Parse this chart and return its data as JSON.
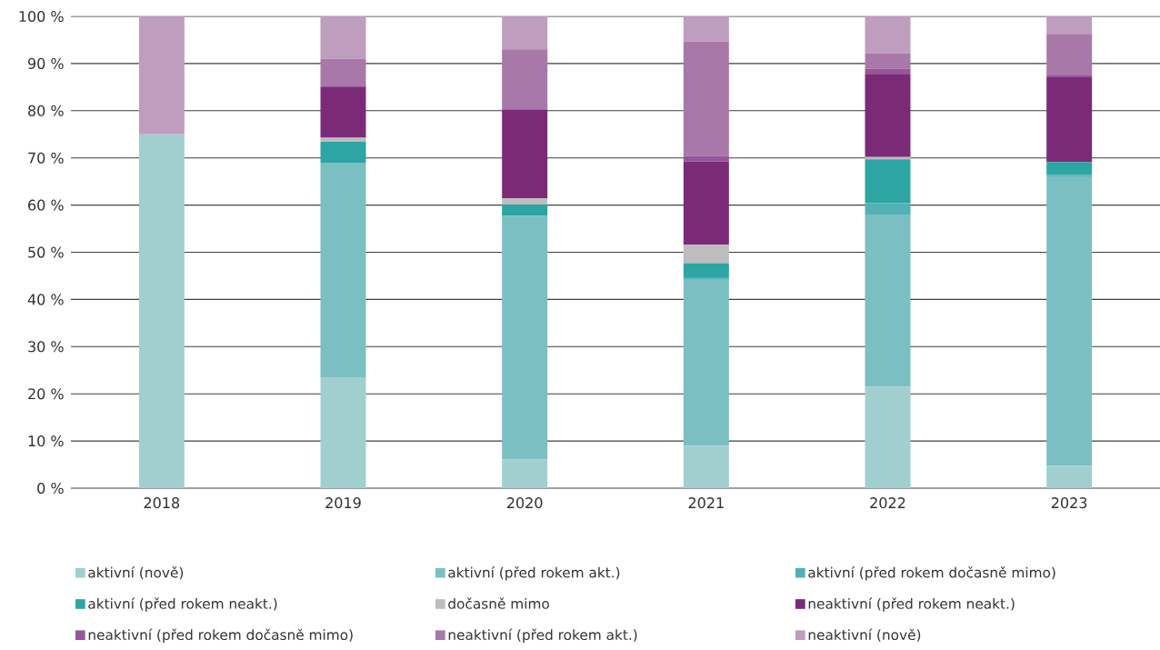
{
  "chart_data": {
    "type": "bar",
    "stacked": true,
    "grid": "y",
    "legend": "bottom",
    "categories": [
      "2018",
      "2019",
      "2020",
      "2021",
      "2022",
      "2023"
    ],
    "ylim": [
      0,
      100
    ],
    "yticks": [
      {
        "value": 0,
        "label": "0 %"
      },
      {
        "value": 10,
        "label": "10 %"
      },
      {
        "value": 20,
        "label": "20 %"
      },
      {
        "value": 30,
        "label": "30 %"
      },
      {
        "value": 40,
        "label": "40 %"
      },
      {
        "value": 50,
        "label": "50 %"
      },
      {
        "value": 60,
        "label": "60 %"
      },
      {
        "value": 70,
        "label": "70 %"
      },
      {
        "value": 80,
        "label": "80 %"
      },
      {
        "value": 90,
        "label": "90 %"
      },
      {
        "value": 100,
        "label": "100 %"
      }
    ],
    "series": [
      {
        "name": "aktivní (nově)",
        "color": "#a1cfd0",
        "values": [
          75,
          23.5,
          6.1,
          9.0,
          21.5,
          4.7
        ]
      },
      {
        "name": "aktivní (před rokem akt.)",
        "color": "#7bbfc3",
        "values": [
          0,
          45.5,
          51.6,
          35.3,
          36.5,
          61.4
        ]
      },
      {
        "name": "aktivní (před rokem dočasně mimo)",
        "color": "#52b1b3",
        "values": [
          0,
          0,
          0,
          0.4,
          2.4,
          0.3
        ]
      },
      {
        "name": "aktivní (před rokem neakt.)",
        "color": "#2ca5a3",
        "values": [
          0,
          4.4,
          2.4,
          3.0,
          9.3,
          2.7
        ]
      },
      {
        "name": "dočasně mimo",
        "color": "#bdbdbd",
        "values": [
          0,
          0.9,
          1.3,
          3.9,
          0.5,
          0
        ]
      },
      {
        "name": "neaktivní (před rokem neakt.)",
        "color": "#7b2a78",
        "values": [
          0,
          10.8,
          18.8,
          17.6,
          17.6,
          18.0
        ]
      },
      {
        "name": "neaktivní (před rokem dočasně mimo)",
        "color": "#955597",
        "values": [
          0,
          0,
          0.3,
          1.2,
          1.1,
          0.5
        ]
      },
      {
        "name": "neaktivní (před rokem akt.)",
        "color": "#a878a8",
        "values": [
          0,
          5.9,
          12.5,
          24.3,
          3.3,
          8.7
        ]
      },
      {
        "name": "neaktivní (nově)",
        "color": "#bf9dbf",
        "values": [
          25,
          9.0,
          7.0,
          5.3,
          7.8,
          3.7
        ]
      }
    ]
  }
}
